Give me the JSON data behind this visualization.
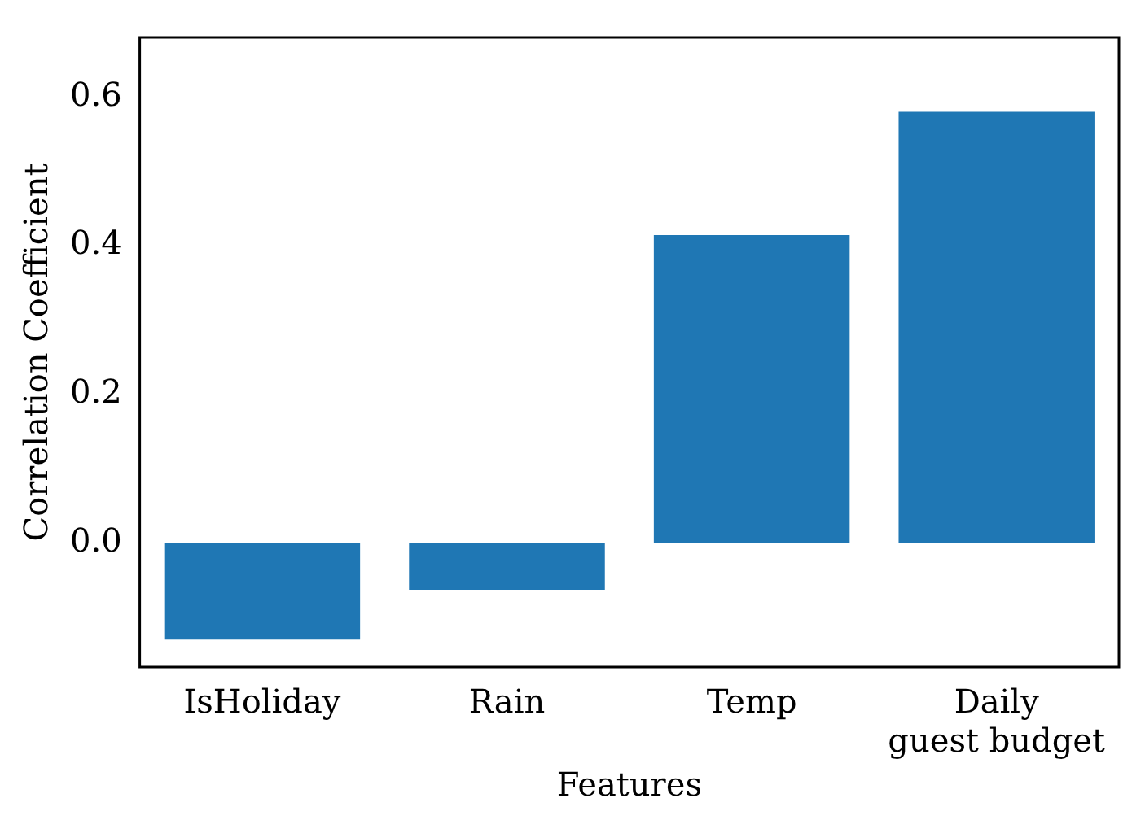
{
  "chart_data": {
    "type": "bar",
    "xlabel": "Features",
    "ylabel": "Correlation Coefficient",
    "categories": [
      "IsHoliday",
      "Rain",
      "Temp",
      "Daily guest budget"
    ],
    "values": [
      -0.13,
      -0.063,
      0.414,
      0.58
    ],
    "color": "#1f77b4",
    "ylim": [
      -0.167,
      0.68
    ],
    "yticks": [
      {
        "value": 0,
        "label": "0.0"
      },
      0.2,
      0.4,
      0.6
    ],
    "grid": false,
    "legend": false
  }
}
